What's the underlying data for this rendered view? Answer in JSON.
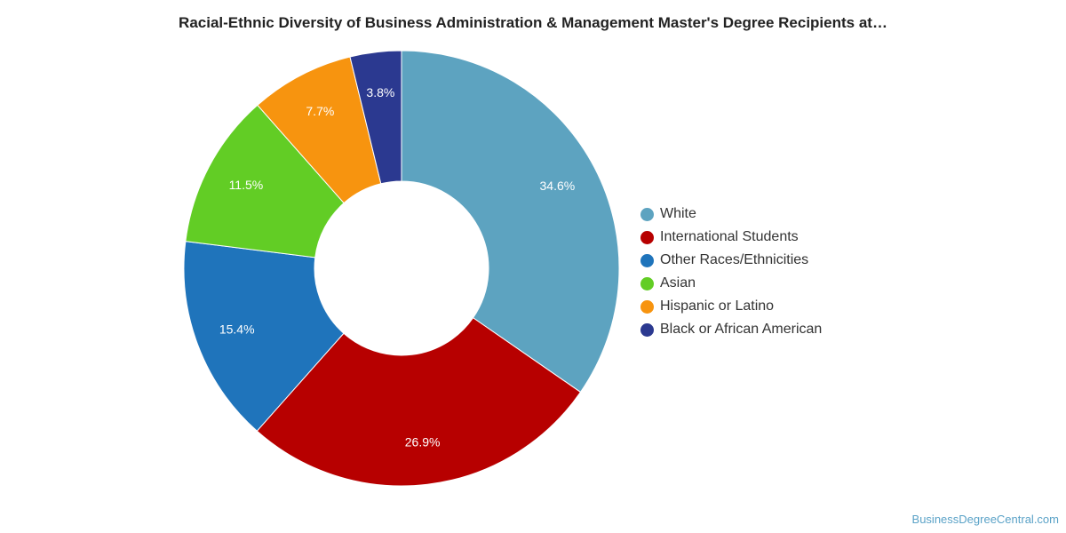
{
  "chart_data": {
    "type": "pie",
    "variant": "donut",
    "title": "Racial-Ethnic Diversity of Business Administration & Management Master's Degree Recipients at…",
    "categories": [
      "White",
      "International Students",
      "Other Races/Ethnicities",
      "Asian",
      "Hispanic or Latino",
      "Black or African American"
    ],
    "values": [
      34.6,
      26.9,
      15.4,
      11.5,
      7.7,
      3.8
    ],
    "labels": [
      "34.6%",
      "26.9%",
      "15.4%",
      "11.5%",
      "7.7%",
      "3.8%"
    ],
    "colors": [
      "#5da3c0",
      "#b70000",
      "#1f74bb",
      "#62cd25",
      "#f7940f",
      "#2b3990"
    ],
    "legend_position": "right",
    "grid": false
  },
  "footer": {
    "source": "BusinessDegreeCentral.com"
  }
}
